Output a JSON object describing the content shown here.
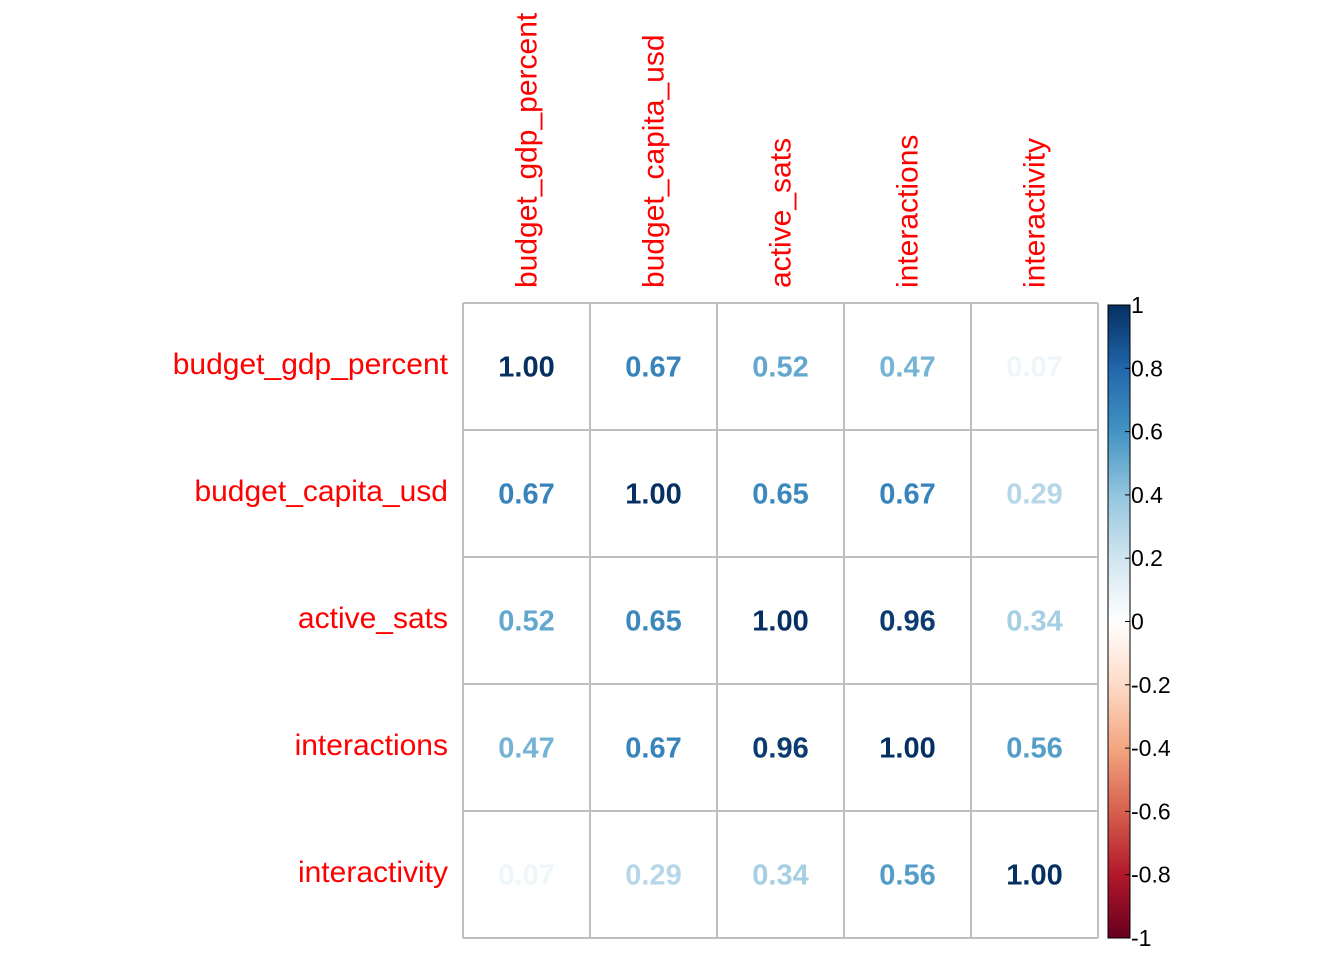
{
  "chart_data": {
    "type": "heatmap",
    "variables": [
      "budget_gdp_percent",
      "budget_capita_usd",
      "active_sats",
      "interactions",
      "interactivity"
    ],
    "matrix": [
      [
        1.0,
        0.67,
        0.52,
        0.47,
        0.07
      ],
      [
        0.67,
        1.0,
        0.65,
        0.67,
        0.29
      ],
      [
        0.52,
        0.65,
        1.0,
        0.96,
        0.34
      ],
      [
        0.47,
        0.67,
        0.96,
        1.0,
        0.56
      ],
      [
        0.07,
        0.29,
        0.34,
        0.56,
        1.0
      ]
    ],
    "display_values": [
      [
        "1.00",
        "0.67",
        "0.52",
        "0.47",
        "0.07"
      ],
      [
        "0.67",
        "1.00",
        "0.65",
        "0.67",
        "0.29"
      ],
      [
        "0.52",
        "0.65",
        "1.00",
        "0.96",
        "0.34"
      ],
      [
        "0.47",
        "0.67",
        "0.96",
        "1.00",
        "0.56"
      ],
      [
        "0.07",
        "0.29",
        "0.34",
        "0.56",
        "1.00"
      ]
    ],
    "colorbar": {
      "range": [
        -1,
        1
      ],
      "ticks": [
        "1",
        "0.8",
        "0.6",
        "0.4",
        "0.2",
        "0",
        "-0.2",
        "-0.4",
        "-0.6",
        "-0.8",
        "-1"
      ],
      "tick_values": [
        1,
        0.8,
        0.6,
        0.4,
        0.2,
        0,
        -0.2,
        -0.4,
        -0.6,
        -0.8,
        -1
      ],
      "palette": [
        "#67001F",
        "#B2182B",
        "#D6604D",
        "#F4A582",
        "#FDDBC7",
        "#FFFFFF",
        "#D1E5F0",
        "#92C5DE",
        "#4393C3",
        "#2166AC",
        "#053061"
      ]
    },
    "label_color": "#ff0000",
    "grid_color": "#bfbfbf",
    "legend_position": "right"
  }
}
